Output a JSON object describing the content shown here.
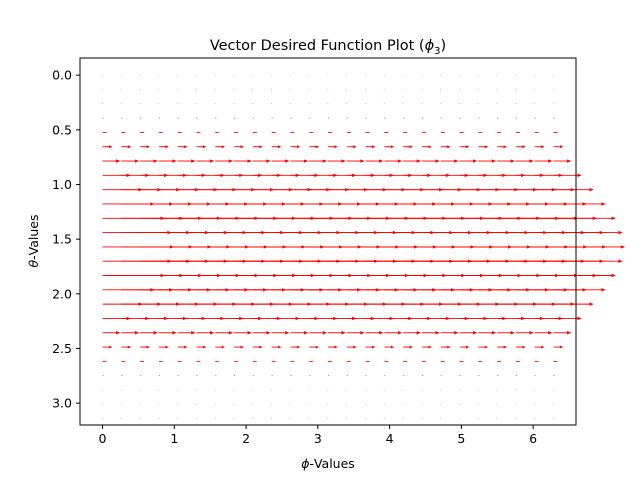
{
  "colors": {
    "arrow": "#ff0000",
    "axes": "#000000",
    "background": "#ffffff"
  },
  "chart_data": {
    "type": "quiver",
    "title": {
      "prefix": "Vector Desired Function Plot (",
      "symbol": "ϕ",
      "subscript": "3",
      "suffix": ")"
    },
    "xlabel": {
      "symbol": "ϕ",
      "text": "-Values"
    },
    "ylabel": {
      "symbol": "θ",
      "text": "-Values"
    },
    "xlim": [
      -0.314,
      6.597
    ],
    "ylim": [
      3.2,
      -0.157
    ],
    "y_inverted": true,
    "xticks": [
      0,
      1,
      2,
      3,
      4,
      5,
      6
    ],
    "xtick_labels": [
      "0",
      "1",
      "2",
      "3",
      "4",
      "5",
      "6"
    ],
    "yticks": [
      0.0,
      0.5,
      1.0,
      1.5,
      2.0,
      2.5,
      3.0
    ],
    "ytick_labels": [
      "0.0",
      "0.5",
      "1.0",
      "1.5",
      "2.0",
      "2.5",
      "3.0"
    ],
    "grid": false,
    "legend": "none",
    "field": {
      "x_range": [
        0,
        6.2832
      ],
      "x_count": 25,
      "y_range": [
        0,
        3.1416
      ],
      "y_count": 25,
      "u": "sin(theta)^4",
      "v": "0",
      "arrow_scale": 1
    }
  }
}
